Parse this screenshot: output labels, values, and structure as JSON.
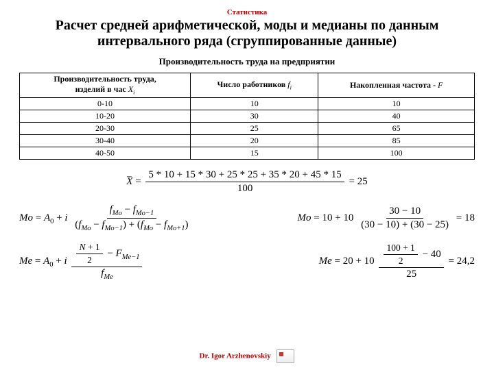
{
  "supertitle": "Статистика",
  "title": "Расчет средней арифметической, моды и медианы по данным интервального ряда (сгруппированные данные)",
  "subtitle": "Производительность труда на предприятии",
  "table": {
    "headers": {
      "col1_line1": "Производительность труда,",
      "col1_line2": "изделий в час",
      "col1_sym": "Xi",
      "col2": "Число работников",
      "col2_sym": "fi",
      "col3": "Накопленная частота -",
      "col3_sym": "F"
    },
    "rows": [
      {
        "x": "0-10",
        "f": "10",
        "F": "10"
      },
      {
        "x": "10-20",
        "f": "30",
        "F": "40"
      },
      {
        "x": "20-30",
        "f": "25",
        "F": "65"
      },
      {
        "x": "30-40",
        "f": "20",
        "F": "85"
      },
      {
        "x": "40-50",
        "f": "15",
        "F": "100"
      }
    ]
  },
  "formulas": {
    "mean_num": "5 * 10 + 15 * 30 + 25 * 25 + 35 * 20 + 45 * 15",
    "mean_den": "100",
    "mean_res": "25",
    "mo_calc_a": "10 + 10",
    "mo_calc_num": "30 − 10",
    "mo_calc_den": "(30 − 10) + (30 − 25)",
    "mo_res": "18",
    "me_calc_a": "20 + 10",
    "me_calc_num_top": "100 + 1",
    "me_calc_num_bot": "2",
    "me_calc_num_tail": " − 40",
    "me_calc_den": "25",
    "me_res": "24,2"
  },
  "footer": "Dr. Igor Arzhenovskiy",
  "colors": {
    "accent": "#c00000",
    "text": "#000000",
    "bg": "#ffffff"
  }
}
